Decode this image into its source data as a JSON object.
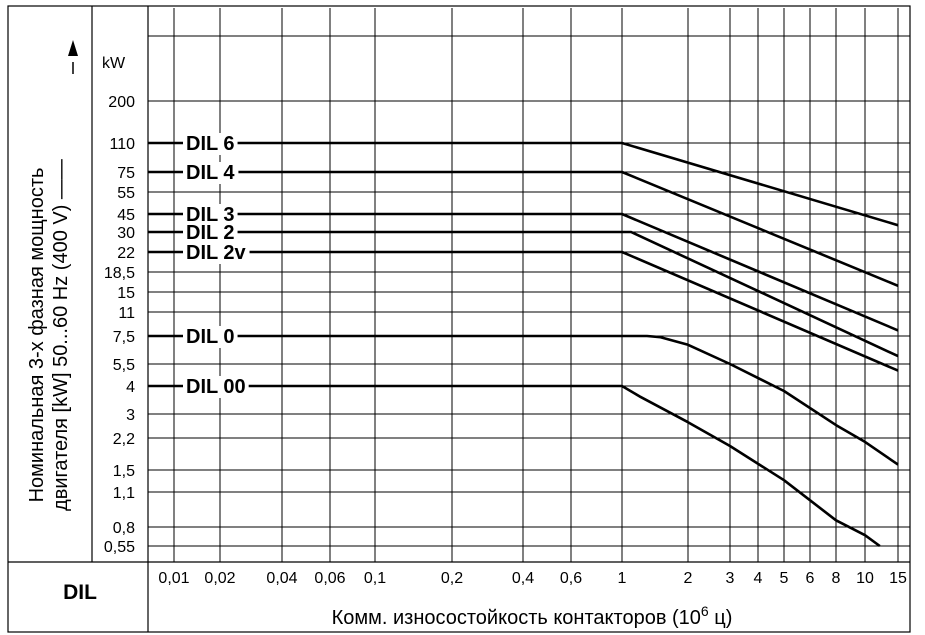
{
  "chart_data": {
    "type": "line",
    "title": "",
    "corner_label": "DIL",
    "ylabel_line1": "Номинальная 3-х фазная мощность",
    "ylabel_line2": "двигателя [kW]  50...60 Hz  (400 V) ——",
    "y_unit": "kW",
    "xlabel_prefix": "Комм. износостойкость контакторов (10",
    "xlabel_exp": "6",
    "xlabel_suffix": " ц)",
    "x_scale": "log",
    "y_scale": "log",
    "xlim": [
      0.007,
      17
    ],
    "ylim": [
      0.5,
      600
    ],
    "grid": true,
    "x_ticks": [
      {
        "v": 0.01,
        "label": "0,01"
      },
      {
        "v": 0.02,
        "label": "0,02"
      },
      {
        "v": 0.04,
        "label": "0,04"
      },
      {
        "v": 0.06,
        "label": "0,06"
      },
      {
        "v": 0.1,
        "label": "0,1"
      },
      {
        "v": 0.2,
        "label": "0,2"
      },
      {
        "v": 0.4,
        "label": "0,4"
      },
      {
        "v": 0.6,
        "label": "0,6"
      },
      {
        "v": 1,
        "label": "1"
      },
      {
        "v": 2,
        "label": "2"
      },
      {
        "v": 3,
        "label": "3"
      },
      {
        "v": 4,
        "label": "4"
      },
      {
        "v": 5,
        "label": "5"
      },
      {
        "v": 6,
        "label": "6"
      },
      {
        "v": 8,
        "label": "8"
      },
      {
        "v": 10,
        "label": "10"
      },
      {
        "v": 15,
        "label": "15"
      }
    ],
    "y_ticks": [
      {
        "v": 200,
        "label": "200"
      },
      {
        "v": 110,
        "label": "110"
      },
      {
        "v": 75,
        "label": "75"
      },
      {
        "v": 55,
        "label": "55"
      },
      {
        "v": 45,
        "label": "45"
      },
      {
        "v": 30,
        "label": "30"
      },
      {
        "v": 22,
        "label": "22"
      },
      {
        "v": 18.5,
        "label": "18,5"
      },
      {
        "v": 15,
        "label": "15"
      },
      {
        "v": 11,
        "label": "11"
      },
      {
        "v": 7.5,
        "label": "7,5"
      },
      {
        "v": 5.5,
        "label": "5,5"
      },
      {
        "v": 4,
        "label": "4"
      },
      {
        "v": 3,
        "label": "3"
      },
      {
        "v": 2.2,
        "label": "2,2"
      },
      {
        "v": 1.5,
        "label": "1,5"
      },
      {
        "v": 1.1,
        "label": "1,1"
      },
      {
        "v": 0.8,
        "label": "0,8"
      },
      {
        "v": 0.55,
        "label": "0,55"
      }
    ],
    "series": [
      {
        "name": "DIL 6",
        "points": [
          [
            0.007,
            110
          ],
          [
            1,
            110
          ],
          [
            15,
            35
          ]
        ]
      },
      {
        "name": "DIL 4",
        "points": [
          [
            0.007,
            75
          ],
          [
            1,
            75
          ],
          [
            15,
            16
          ]
        ]
      },
      {
        "name": "DIL 3",
        "points": [
          [
            0.007,
            45
          ],
          [
            1,
            45
          ],
          [
            15,
            8.2
          ]
        ]
      },
      {
        "name": "DIL 2",
        "points": [
          [
            0.007,
            30
          ],
          [
            1.1,
            30
          ],
          [
            15,
            6
          ]
        ]
      },
      {
        "name": "DIL 2v",
        "points": [
          [
            0.007,
            22
          ],
          [
            1,
            22
          ],
          [
            15,
            5
          ]
        ]
      },
      {
        "name": "DIL 0",
        "points": [
          [
            0.007,
            7.5
          ],
          [
            1.3,
            7.5
          ],
          [
            1.5,
            7.4
          ],
          [
            2,
            6.8
          ],
          [
            3,
            5.5
          ],
          [
            5,
            3.8
          ],
          [
            8,
            2.6
          ],
          [
            10,
            2.1
          ],
          [
            15,
            1.6
          ]
        ]
      },
      {
        "name": "DIL 00",
        "points": [
          [
            0.007,
            4
          ],
          [
            1,
            4
          ],
          [
            1.2,
            3.6
          ],
          [
            2,
            2.7
          ],
          [
            3,
            2.0
          ],
          [
            5,
            1.3
          ],
          [
            8,
            0.85
          ],
          [
            10,
            0.68
          ],
          [
            12,
            0.55
          ]
        ]
      }
    ]
  }
}
